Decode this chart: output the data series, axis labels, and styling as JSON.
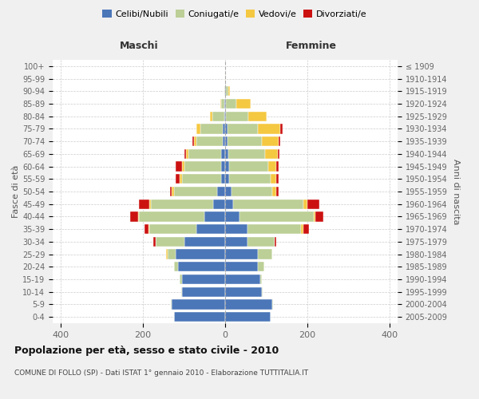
{
  "age_groups": [
    "0-4",
    "5-9",
    "10-14",
    "15-19",
    "20-24",
    "25-29",
    "30-34",
    "35-39",
    "40-44",
    "45-49",
    "50-54",
    "55-59",
    "60-64",
    "65-69",
    "70-74",
    "75-79",
    "80-84",
    "85-89",
    "90-94",
    "95-99",
    "100+"
  ],
  "birth_years": [
    "2005-2009",
    "2000-2004",
    "1995-1999",
    "1990-1994",
    "1985-1989",
    "1980-1984",
    "1975-1979",
    "1970-1974",
    "1965-1969",
    "1960-1964",
    "1955-1959",
    "1950-1954",
    "1945-1949",
    "1940-1944",
    "1935-1939",
    "1930-1934",
    "1925-1929",
    "1920-1924",
    "1915-1919",
    "1910-1914",
    "≤ 1909"
  ],
  "males": {
    "celibi": [
      125,
      130,
      105,
      105,
      115,
      120,
      100,
      70,
      50,
      30,
      20,
      10,
      10,
      10,
      5,
      5,
      2,
      2,
      0,
      0,
      0
    ],
    "coniugati": [
      0,
      2,
      2,
      5,
      10,
      20,
      70,
      115,
      160,
      150,
      105,
      95,
      90,
      80,
      65,
      55,
      30,
      8,
      2,
      0,
      0
    ],
    "vedovi": [
      0,
      0,
      0,
      0,
      0,
      3,
      0,
      2,
      2,
      5,
      5,
      5,
      5,
      5,
      5,
      10,
      5,
      2,
      0,
      0,
      0
    ],
    "divorziati": [
      0,
      0,
      0,
      0,
      0,
      0,
      5,
      10,
      20,
      25,
      5,
      10,
      15,
      5,
      5,
      0,
      0,
      0,
      0,
      0,
      0
    ]
  },
  "females": {
    "nubili": [
      110,
      115,
      90,
      85,
      80,
      80,
      55,
      55,
      35,
      20,
      15,
      10,
      10,
      8,
      5,
      5,
      2,
      2,
      2,
      0,
      0
    ],
    "coniugate": [
      0,
      2,
      2,
      5,
      15,
      35,
      65,
      130,
      180,
      170,
      100,
      100,
      95,
      90,
      85,
      75,
      55,
      25,
      5,
      2,
      0
    ],
    "vedove": [
      0,
      0,
      0,
      0,
      0,
      0,
      0,
      5,
      5,
      10,
      10,
      15,
      20,
      30,
      40,
      55,
      45,
      35,
      5,
      0,
      0
    ],
    "divorziate": [
      0,
      0,
      0,
      0,
      0,
      0,
      5,
      15,
      20,
      30,
      5,
      5,
      5,
      5,
      5,
      5,
      0,
      0,
      0,
      0,
      0
    ]
  },
  "colors": {
    "celibi_nubili": "#4B76B8",
    "coniugati": "#BCCF96",
    "vedovi": "#F5C842",
    "divorziati": "#CC1111"
  },
  "xlim": 420,
  "title": "Popolazione per età, sesso e stato civile - 2010",
  "subtitle": "COMUNE DI FOLLO (SP) - Dati ISTAT 1° gennaio 2010 - Elaborazione TUTTITALIA.IT",
  "xlabel_left": "Maschi",
  "xlabel_right": "Femmine",
  "ylabel_left": "Fasce di età",
  "ylabel_right": "Anni di nascita",
  "bg_color": "#f0f0f0",
  "plot_bg": "#ffffff"
}
